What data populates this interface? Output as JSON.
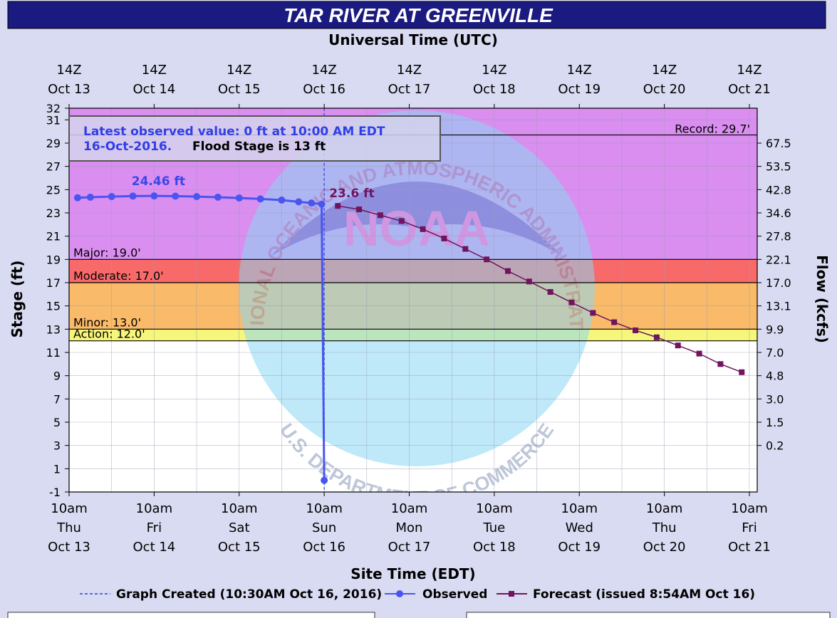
{
  "title": "TAR RIVER AT GREENVILLE",
  "top_axis_title": "Universal Time (UTC)",
  "bottom_axis_title": "Site Time (EDT)",
  "left_axis_title": "Stage (ft)",
  "right_axis_title": "Flow (kcfs)",
  "info_box": {
    "line1": "Latest observed value: 0 ft at 10:00 AM EDT",
    "line2_date": "16-Oct-2016.",
    "line2_flood": "Flood Stage is 13 ft"
  },
  "legend": {
    "created": "Graph Created (10:30AM Oct 16, 2016)",
    "observed": "Observed",
    "forecast": "Forecast (issued 8:54AM Oct 16)"
  },
  "watermark": {
    "top_text": "NATIONAL OCEANIC AND ATMOSPHERIC ADMINISTRATION",
    "bottom_text": "U.S. DEPARTMENT OF COMMERCE",
    "center_text": "NOAA"
  },
  "colors": {
    "header_bg": "#1a1a80",
    "record_zone": "#d98ef0",
    "major_zone": "#ee68ee",
    "moderate_zone": "#f86a6a",
    "minor_zone": "#f9bb6a",
    "action_zone": "#f6f67a",
    "observed": "#4a55f0",
    "forecast": "#70145e"
  },
  "chart_data": {
    "type": "line",
    "title": "TAR RIVER AT GREENVILLE",
    "xlabel": "Site Time (EDT)",
    "ylabel": "Stage (ft)",
    "y2label": "Flow (kcfs)",
    "ylim": [
      -1,
      32
    ],
    "xlim_days": [
      0,
      8
    ],
    "y_ticks": [
      -1,
      1,
      3,
      5,
      7,
      9,
      11,
      13,
      15,
      17,
      19,
      21,
      23,
      25,
      27,
      29,
      31,
      32
    ],
    "x_ticks_edt": [
      {
        "time": "10am",
        "day": "Thu",
        "date": "Oct 13"
      },
      {
        "time": "10am",
        "day": "Fri",
        "date": "Oct 14"
      },
      {
        "time": "10am",
        "day": "Sat",
        "date": "Oct 15"
      },
      {
        "time": "10am",
        "day": "Sun",
        "date": "Oct 16"
      },
      {
        "time": "10am",
        "day": "Mon",
        "date": "Oct 17"
      },
      {
        "time": "10am",
        "day": "Tue",
        "date": "Oct 18"
      },
      {
        "time": "10am",
        "day": "Wed",
        "date": "Oct 19"
      },
      {
        "time": "10am",
        "day": "Thu",
        "date": "Oct 20"
      },
      {
        "time": "10am",
        "day": "Fri",
        "date": "Oct 21"
      }
    ],
    "x_ticks_utc": [
      {
        "time": "14Z",
        "date": "Oct 13"
      },
      {
        "time": "14Z",
        "date": "Oct 14"
      },
      {
        "time": "14Z",
        "date": "Oct 15"
      },
      {
        "time": "14Z",
        "date": "Oct 16"
      },
      {
        "time": "14Z",
        "date": "Oct 17"
      },
      {
        "time": "14Z",
        "date": "Oct 18"
      },
      {
        "time": "14Z",
        "date": "Oct 19"
      },
      {
        "time": "14Z",
        "date": "Oct 20"
      },
      {
        "time": "14Z",
        "date": "Oct 21"
      }
    ],
    "flow_ticks": [
      {
        "stage": 29,
        "label": "67.5"
      },
      {
        "stage": 27,
        "label": "53.5"
      },
      {
        "stage": 25,
        "label": "42.8"
      },
      {
        "stage": 23,
        "label": "34.6"
      },
      {
        "stage": 21,
        "label": "27.8"
      },
      {
        "stage": 19,
        "label": "22.1"
      },
      {
        "stage": 17,
        "label": "17.0"
      },
      {
        "stage": 15,
        "label": "13.1"
      },
      {
        "stage": 13,
        "label": "9.9"
      },
      {
        "stage": 11,
        "label": "7.0"
      },
      {
        "stage": 9,
        "label": "4.8"
      },
      {
        "stage": 7,
        "label": "3.0"
      },
      {
        "stage": 5,
        "label": "1.5"
      },
      {
        "stage": 3,
        "label": "0.2"
      }
    ],
    "thresholds": [
      {
        "name": "Record",
        "label": "Record: 29.7'",
        "value": 29.7
      },
      {
        "name": "Major",
        "label": "Major: 19.0'",
        "value": 19.0
      },
      {
        "name": "Moderate",
        "label": "Moderate: 17.0'",
        "value": 17.0
      },
      {
        "name": "Minor",
        "label": "Minor: 13.0'",
        "value": 13.0
      },
      {
        "name": "Action",
        "label": "Action: 12.0'",
        "value": 12.0
      }
    ],
    "series": [
      {
        "name": "Observed",
        "peak_label": "24.46 ft",
        "x": [
          0.1,
          0.25,
          0.5,
          0.75,
          1.0,
          1.25,
          1.5,
          1.75,
          2.0,
          2.25,
          2.5,
          2.7,
          2.85,
          2.97,
          3.0
        ],
        "y": [
          24.3,
          24.35,
          24.4,
          24.45,
          24.46,
          24.44,
          24.4,
          24.35,
          24.28,
          24.2,
          24.1,
          23.95,
          23.85,
          23.75,
          0
        ]
      },
      {
        "name": "Forecast",
        "first_label": "23.6 ft",
        "x": [
          3.16,
          3.41,
          3.66,
          3.91,
          4.16,
          4.41,
          4.66,
          4.91,
          5.16,
          5.41,
          5.66,
          5.91,
          6.16,
          6.41,
          6.66,
          6.91,
          7.16,
          7.41,
          7.66,
          7.91
        ],
        "y": [
          23.6,
          23.3,
          22.8,
          22.3,
          21.6,
          20.8,
          19.9,
          19.0,
          18.0,
          17.1,
          16.2,
          15.3,
          14.4,
          13.6,
          12.9,
          12.3,
          11.6,
          10.9,
          10.0,
          9.3
        ]
      }
    ],
    "graph_created_x": 3.0,
    "grid": true
  }
}
